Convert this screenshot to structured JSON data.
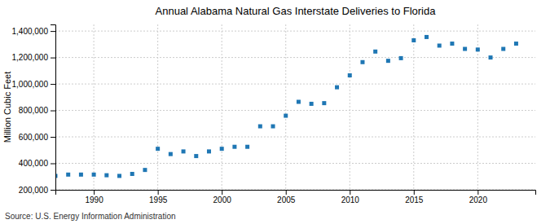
{
  "chart_data": {
    "type": "scatter",
    "title": "Annual Alabama Natural Gas Interstate Deliveries to Florida",
    "ylabel": "Million Cubic Feet",
    "source": "Source: U.S. Energy Information Administration",
    "marker": "square",
    "grid": true,
    "xlim": [
      1987.0,
      2024.5
    ],
    "ylim": [
      200000,
      1450000
    ],
    "xticks": [
      1990,
      1995,
      2000,
      2005,
      2010,
      2015,
      2020
    ],
    "yticks": [
      {
        "value": 200000,
        "label": "200,000"
      },
      {
        "value": 400000,
        "label": "400,000"
      },
      {
        "value": 600000,
        "label": "600,000"
      },
      {
        "value": 800000,
        "label": "800,000"
      },
      {
        "value": 1000000,
        "label": "1,000,000"
      },
      {
        "value": 1200000,
        "label": "1,200,000"
      },
      {
        "value": 1400000,
        "label": "1,400,000"
      }
    ],
    "x": [
      1987,
      1988,
      1989,
      1990,
      1991,
      1992,
      1993,
      1994,
      1995,
      1996,
      1997,
      1998,
      1999,
      2000,
      2001,
      2002,
      2003,
      2004,
      2005,
      2006,
      2007,
      2008,
      2009,
      2010,
      2011,
      2012,
      2013,
      2014,
      2015,
      2016,
      2017,
      2018,
      2019,
      2020,
      2021,
      2022,
      2023
    ],
    "values": [
      305000,
      315000,
      315000,
      315000,
      310000,
      305000,
      320000,
      350000,
      510000,
      470000,
      490000,
      455000,
      490000,
      510000,
      525000,
      525000,
      680000,
      680000,
      760000,
      865000,
      850000,
      855000,
      975000,
      1065000,
      1165000,
      1245000,
      1175000,
      1195000,
      1330000,
      1355000,
      1290000,
      1305000,
      1265000,
      1260000,
      1200000,
      1265000,
      1305000
    ]
  }
}
